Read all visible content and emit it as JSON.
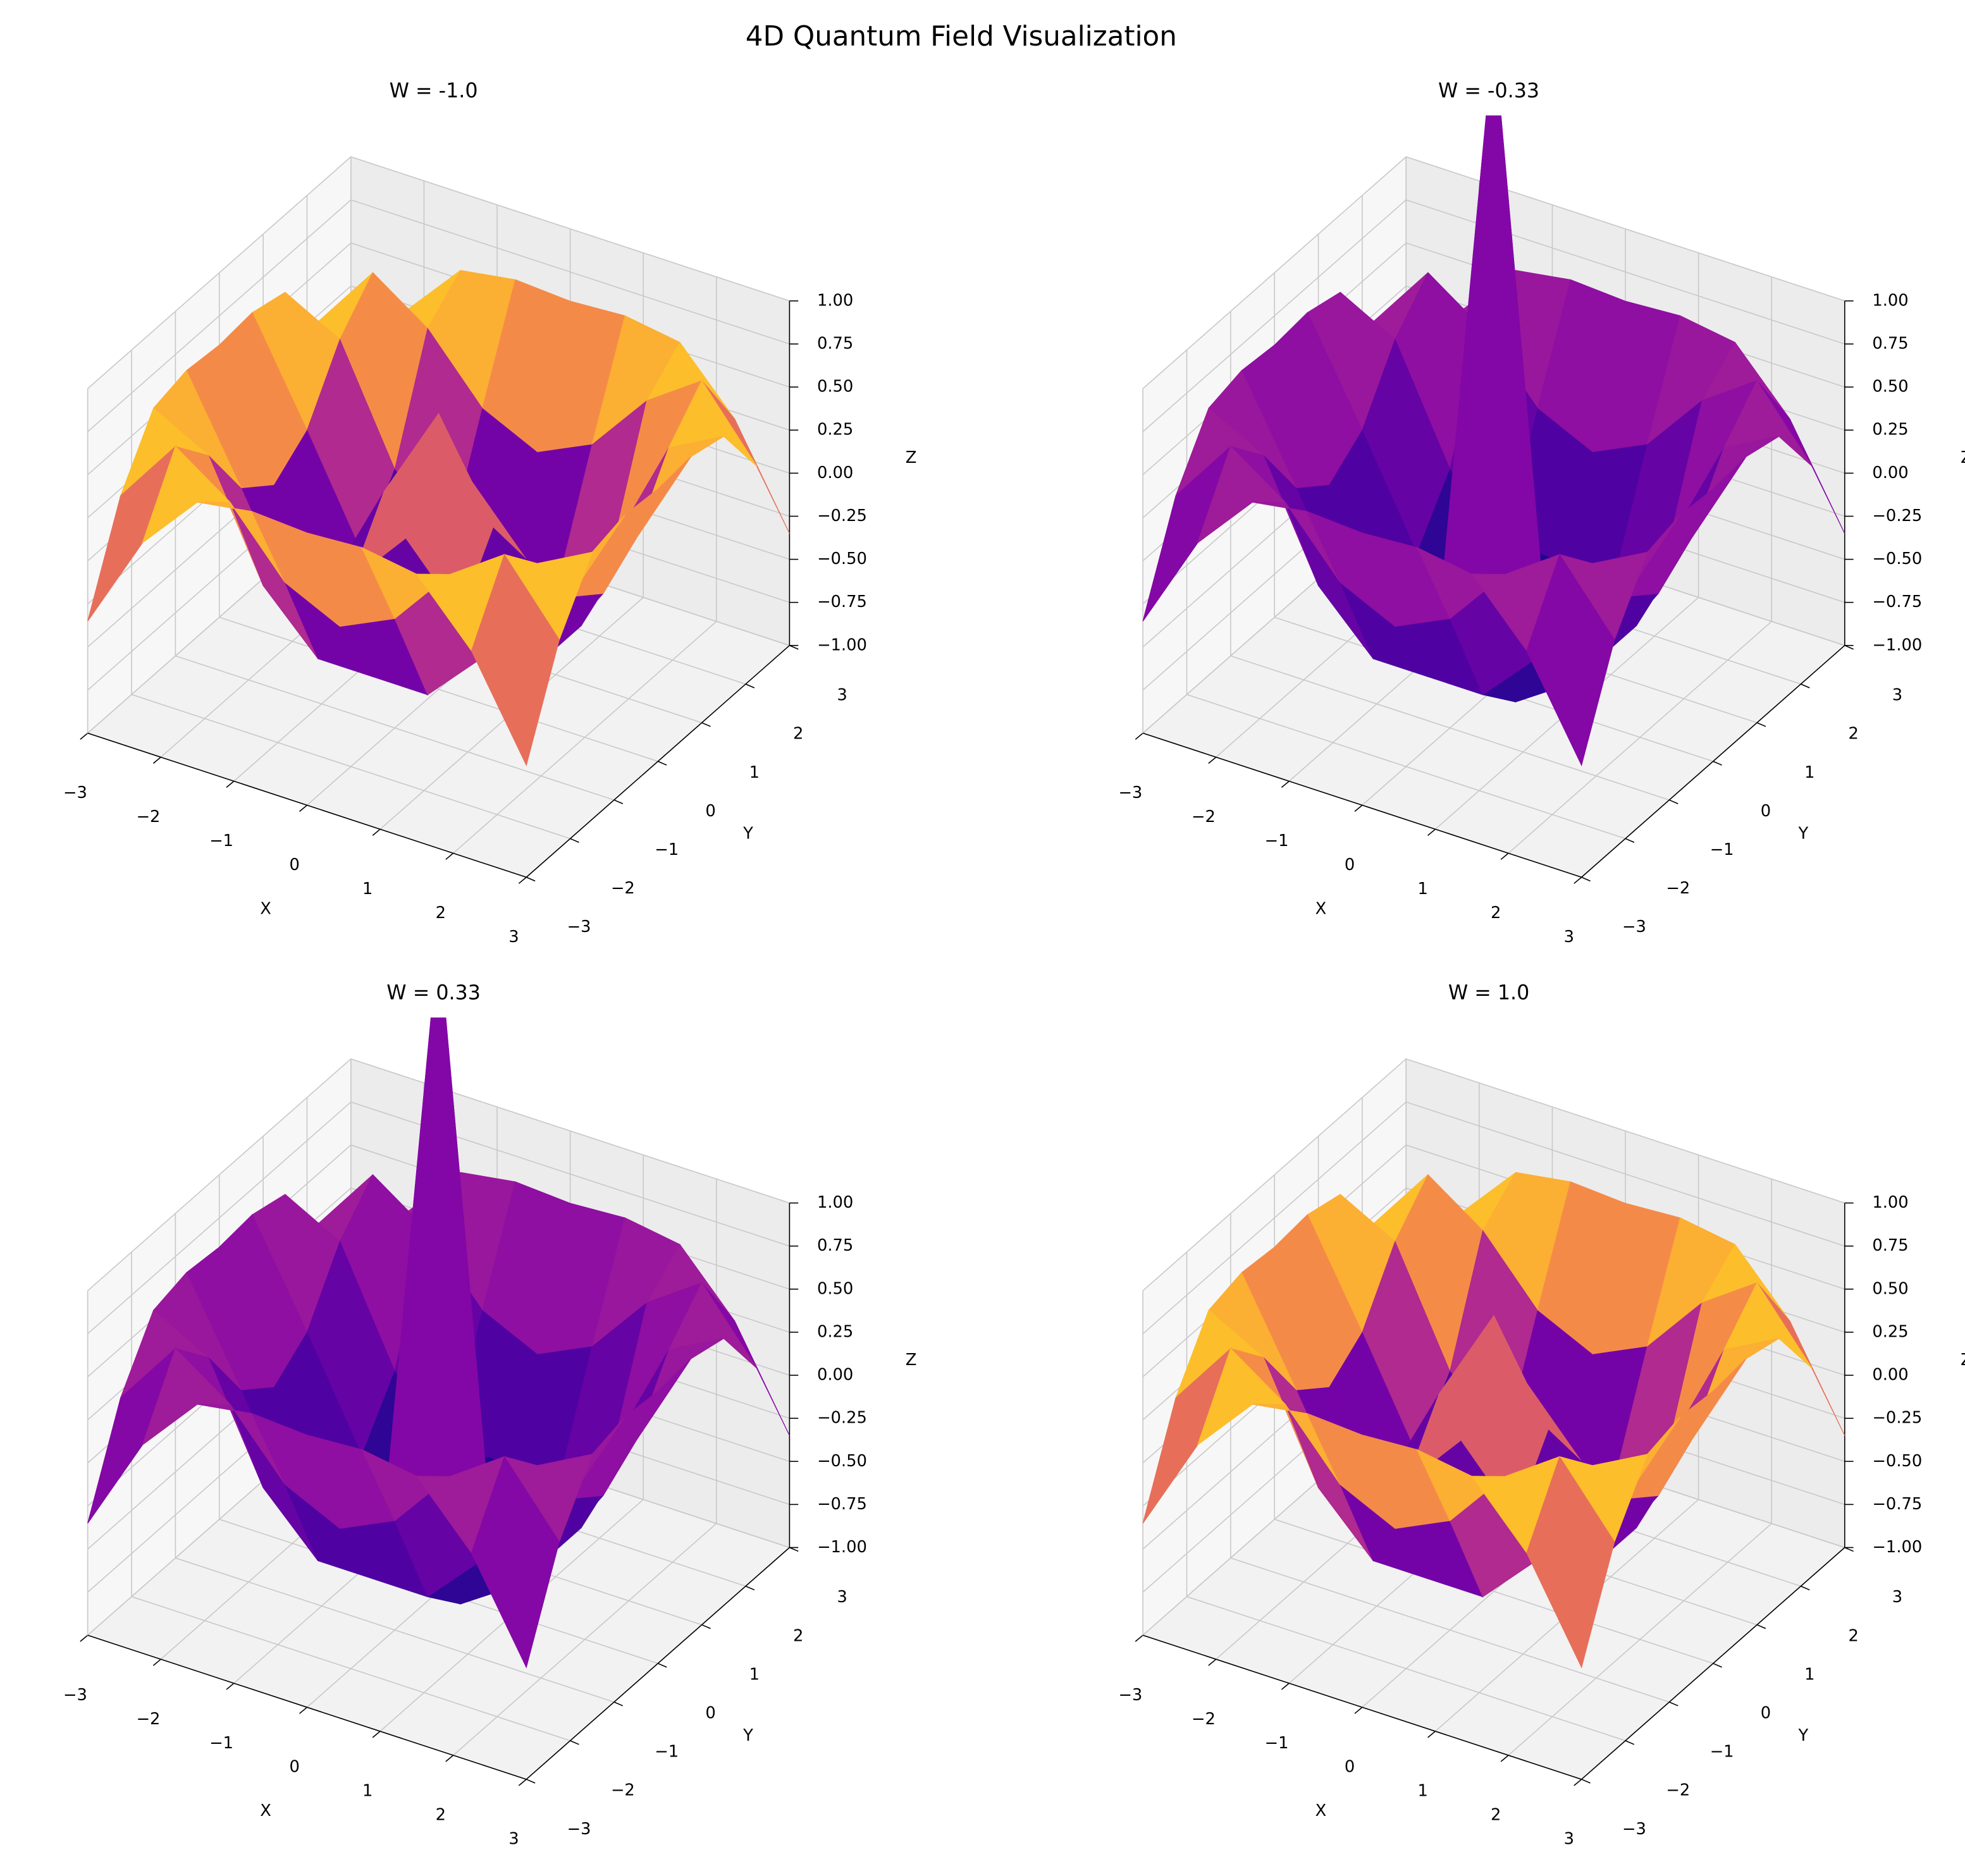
{
  "title": "4D Quantum Field Visualization",
  "chart_data": [
    {
      "type": "surface",
      "title": "W = -1.0",
      "xlabel": "X",
      "ylabel": "Y",
      "zlabel": "Z",
      "cmap": "plasma",
      "x": [
        -3,
        -2.25,
        -1.5,
        -0.75,
        0,
        0.75,
        1.5,
        2.25,
        3
      ],
      "y": [
        -3,
        -2.25,
        -1.5,
        -0.75,
        0,
        0.75,
        1.5,
        2.25,
        3
      ],
      "z": [
        [
          -0.35,
          0.21,
          0.55,
          0.6,
          0.58,
          0.6,
          0.55,
          0.21,
          -0.35
        ],
        [
          0.21,
          0.6,
          0.38,
          0.02,
          -0.13,
          0.02,
          0.38,
          0.6,
          0.21
        ],
        [
          0.55,
          0.38,
          -0.27,
          -0.59,
          -0.59,
          -0.59,
          -0.27,
          0.38,
          0.55
        ],
        [
          0.6,
          0.02,
          -0.59,
          -0.31,
          0.04,
          -0.31,
          -0.59,
          0.02,
          0.6
        ],
        [
          0.58,
          -0.13,
          -0.59,
          0.04,
          0.6,
          0.04,
          -0.59,
          -0.13,
          0.58
        ],
        [
          0.6,
          0.02,
          -0.59,
          -0.31,
          0.04,
          -0.31,
          -0.59,
          0.02,
          0.6
        ],
        [
          0.55,
          0.38,
          -0.27,
          -0.59,
          -0.59,
          -0.59,
          -0.27,
          0.38,
          0.55
        ],
        [
          0.21,
          0.6,
          0.38,
          0.02,
          -0.13,
          0.02,
          0.38,
          0.6,
          0.21
        ],
        [
          -0.35,
          0.21,
          0.55,
          0.6,
          0.58,
          0.6,
          0.55,
          0.21,
          -0.35
        ]
      ],
      "xlim": [
        -3,
        3
      ],
      "ylim": [
        -3,
        3
      ],
      "zlim": [
        -1,
        1
      ],
      "xticks": [
        {
          "value": -3,
          "label": "−3"
        },
        {
          "value": -2,
          "label": "−2"
        },
        {
          "value": -1,
          "label": "−1"
        },
        0,
        1,
        2,
        3
      ],
      "yticks": [
        {
          "value": -3,
          "label": "−3"
        },
        {
          "value": -2,
          "label": "−2"
        },
        {
          "value": -1,
          "label": "−1"
        },
        0,
        1,
        2,
        3
      ],
      "zticks": [
        {
          "value": -1,
          "label": "−1.00"
        },
        {
          "value": -0.75,
          "label": "−0.75"
        },
        {
          "value": -0.5,
          "label": "−0.50"
        },
        {
          "value": -0.25,
          "label": "−0.25"
        },
        {
          "value": 0,
          "label": "0.00"
        },
        0.25,
        {
          "value": 0.5,
          "label": "0.50"
        },
        0.75,
        {
          "value": 1,
          "label": "1.00"
        }
      ]
    },
    {
      "type": "surface",
      "title": "W = -0.33",
      "xlabel": "X",
      "ylabel": "Y",
      "zlabel": "Z",
      "cmap": "plasma",
      "x": [
        -3,
        -2.25,
        -1.5,
        -0.75,
        0,
        0.75,
        1.5,
        2.25,
        3
      ],
      "y": [
        -3,
        -2.25,
        -1.5,
        -0.75,
        0,
        0.75,
        1.5,
        2.25,
        3
      ],
      "z": [
        [
          -0.35,
          0.21,
          0.55,
          0.6,
          0.58,
          0.6,
          0.55,
          0.21,
          -0.35
        ],
        [
          0.21,
          0.6,
          0.38,
          0.02,
          -0.13,
          0.02,
          0.38,
          0.6,
          0.21
        ],
        [
          0.55,
          0.38,
          -0.27,
          -0.59,
          -0.59,
          -0.59,
          -0.27,
          0.38,
          0.55
        ],
        [
          0.6,
          0.02,
          -0.59,
          -0.8,
          -0.7,
          -0.8,
          -0.59,
          0.02,
          0.6
        ],
        [
          0.58,
          -0.13,
          -0.59,
          -0.7,
          2.8,
          -0.7,
          -0.59,
          -0.13,
          0.58
        ],
        [
          0.6,
          0.02,
          -0.59,
          -0.8,
          -0.7,
          -0.8,
          -0.59,
          0.02,
          0.6
        ],
        [
          0.55,
          0.38,
          -0.27,
          -0.59,
          -0.59,
          -0.59,
          -0.27,
          0.38,
          0.55
        ],
        [
          0.21,
          0.6,
          0.38,
          0.02,
          -0.13,
          0.02,
          0.38,
          0.6,
          0.21
        ],
        [
          -0.35,
          0.21,
          0.55,
          0.6,
          0.58,
          0.6,
          0.55,
          0.21,
          -0.35
        ]
      ],
      "xlim": [
        -3,
        3
      ],
      "ylim": [
        -3,
        3
      ],
      "zlim": [
        -1,
        1
      ],
      "xticks": [
        {
          "value": -3,
          "label": "−3"
        },
        {
          "value": -2,
          "label": "−2"
        },
        {
          "value": -1,
          "label": "−1"
        },
        0,
        1,
        2,
        3
      ],
      "yticks": [
        {
          "value": -3,
          "label": "−3"
        },
        {
          "value": -2,
          "label": "−2"
        },
        {
          "value": -1,
          "label": "−1"
        },
        0,
        1,
        2,
        3
      ],
      "zticks": [
        {
          "value": -1,
          "label": "−1.00"
        },
        {
          "value": -0.75,
          "label": "−0.75"
        },
        {
          "value": -0.5,
          "label": "−0.50"
        },
        {
          "value": -0.25,
          "label": "−0.25"
        },
        {
          "value": 0,
          "label": "0.00"
        },
        0.25,
        {
          "value": 0.5,
          "label": "0.50"
        },
        0.75,
        {
          "value": 1,
          "label": "1.00"
        }
      ]
    },
    {
      "type": "surface",
      "title": "W = 0.33",
      "xlabel": "X",
      "ylabel": "Y",
      "zlabel": "Z",
      "cmap": "plasma",
      "x": [
        -3,
        -2.25,
        -1.5,
        -0.75,
        0,
        0.75,
        1.5,
        2.25,
        3
      ],
      "y": [
        -3,
        -2.25,
        -1.5,
        -0.75,
        0,
        0.75,
        1.5,
        2.25,
        3
      ],
      "z": [
        [
          -0.35,
          0.21,
          0.55,
          0.6,
          0.58,
          0.6,
          0.55,
          0.21,
          -0.35
        ],
        [
          0.21,
          0.6,
          0.38,
          0.02,
          -0.13,
          0.02,
          0.38,
          0.6,
          0.21
        ],
        [
          0.55,
          0.38,
          -0.27,
          -0.59,
          -0.59,
          -0.59,
          -0.27,
          0.38,
          0.55
        ],
        [
          0.6,
          0.02,
          -0.59,
          -0.8,
          -0.7,
          -0.8,
          -0.59,
          0.02,
          0.6
        ],
        [
          0.58,
          -0.13,
          -0.59,
          -0.7,
          2.8,
          -0.7,
          -0.59,
          -0.13,
          0.58
        ],
        [
          0.6,
          0.02,
          -0.59,
          -0.8,
          -0.7,
          -0.8,
          -0.59,
          0.02,
          0.6
        ],
        [
          0.55,
          0.38,
          -0.27,
          -0.59,
          -0.59,
          -0.59,
          -0.27,
          0.38,
          0.55
        ],
        [
          0.21,
          0.6,
          0.38,
          0.02,
          -0.13,
          0.02,
          0.38,
          0.6,
          0.21
        ],
        [
          -0.35,
          0.21,
          0.55,
          0.6,
          0.58,
          0.6,
          0.55,
          0.21,
          -0.35
        ]
      ],
      "xlim": [
        -3,
        3
      ],
      "ylim": [
        -3,
        3
      ],
      "zlim": [
        -1,
        1
      ],
      "xticks": [
        {
          "value": -3,
          "label": "−3"
        },
        {
          "value": -2,
          "label": "−2"
        },
        {
          "value": -1,
          "label": "−1"
        },
        0,
        1,
        2,
        3
      ],
      "yticks": [
        {
          "value": -3,
          "label": "−3"
        },
        {
          "value": -2,
          "label": "−2"
        },
        {
          "value": -1,
          "label": "−1"
        },
        0,
        1,
        2,
        3
      ],
      "zticks": [
        {
          "value": -1,
          "label": "−1.00"
        },
        {
          "value": -0.75,
          "label": "−0.75"
        },
        {
          "value": -0.5,
          "label": "−0.50"
        },
        {
          "value": -0.25,
          "label": "−0.25"
        },
        {
          "value": 0,
          "label": "0.00"
        },
        0.25,
        {
          "value": 0.5,
          "label": "0.50"
        },
        0.75,
        {
          "value": 1,
          "label": "1.00"
        }
      ]
    },
    {
      "type": "surface",
      "title": "W = 1.0",
      "xlabel": "X",
      "ylabel": "Y",
      "zlabel": "Z",
      "cmap": "plasma",
      "x": [
        -3,
        -2.25,
        -1.5,
        -0.75,
        0,
        0.75,
        1.5,
        2.25,
        3
      ],
      "y": [
        -3,
        -2.25,
        -1.5,
        -0.75,
        0,
        0.75,
        1.5,
        2.25,
        3
      ],
      "z": [
        [
          -0.35,
          0.21,
          0.55,
          0.6,
          0.58,
          0.6,
          0.55,
          0.21,
          -0.35
        ],
        [
          0.21,
          0.6,
          0.38,
          0.02,
          -0.13,
          0.02,
          0.38,
          0.6,
          0.21
        ],
        [
          0.55,
          0.38,
          -0.27,
          -0.59,
          -0.59,
          -0.59,
          -0.27,
          0.38,
          0.55
        ],
        [
          0.6,
          0.02,
          -0.59,
          -0.31,
          0.04,
          -0.31,
          -0.59,
          0.02,
          0.6
        ],
        [
          0.58,
          -0.13,
          -0.59,
          0.04,
          0.6,
          0.04,
          -0.59,
          -0.13,
          0.58
        ],
        [
          0.6,
          0.02,
          -0.59,
          -0.31,
          0.04,
          -0.31,
          -0.59,
          0.02,
          0.6
        ],
        [
          0.55,
          0.38,
          -0.27,
          -0.59,
          -0.59,
          -0.59,
          -0.27,
          0.38,
          0.55
        ],
        [
          0.21,
          0.6,
          0.38,
          0.02,
          -0.13,
          0.02,
          0.38,
          0.6,
          0.21
        ],
        [
          -0.35,
          0.21,
          0.55,
          0.6,
          0.58,
          0.6,
          0.55,
          0.21,
          -0.35
        ]
      ],
      "xlim": [
        -3,
        3
      ],
      "ylim": [
        -3,
        3
      ],
      "zlim": [
        -1,
        1
      ],
      "xticks": [
        {
          "value": -3,
          "label": "−3"
        },
        {
          "value": -2,
          "label": "−2"
        },
        {
          "value": -1,
          "label": "−1"
        },
        0,
        1,
        2,
        3
      ],
      "yticks": [
        {
          "value": -3,
          "label": "−3"
        },
        {
          "value": -2,
          "label": "−2"
        },
        {
          "value": -1,
          "label": "−1"
        },
        0,
        1,
        2,
        3
      ],
      "zticks": [
        {
          "value": -1,
          "label": "−1.00"
        },
        {
          "value": -0.75,
          "label": "−0.75"
        },
        {
          "value": -0.5,
          "label": "−0.50"
        },
        {
          "value": -0.25,
          "label": "−0.25"
        },
        {
          "value": 0,
          "label": "0.00"
        },
        0.25,
        {
          "value": 0.5,
          "label": "0.50"
        },
        0.75,
        {
          "value": 1,
          "label": "1.00"
        }
      ]
    }
  ]
}
